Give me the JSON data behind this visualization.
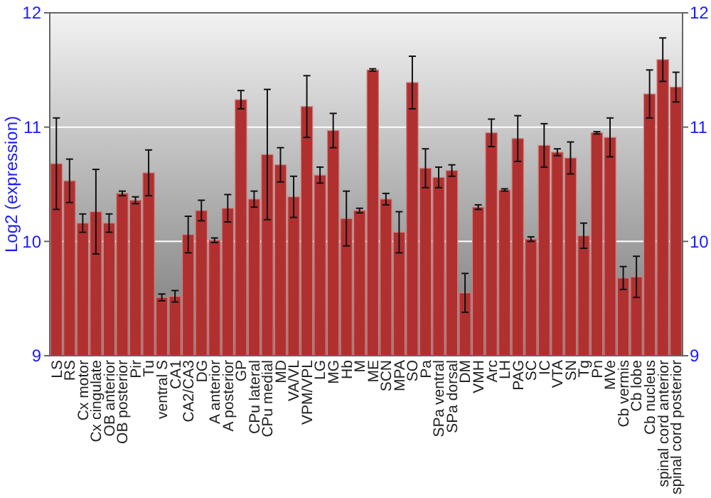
{
  "chart_data": {
    "type": "bar",
    "ylabel": "Log2 (expression)",
    "categories": [
      "LS",
      "RS",
      "Cx motor",
      "Cx cingulate",
      "OB anterior",
      "OB posterior",
      "Pir",
      "Tu",
      "ventral S",
      "CA1",
      "CA2/CA3",
      "DG",
      "A anterior",
      "A posterior",
      "GP",
      "CPu lateral",
      "CPu medial",
      "MD",
      "VA/VL",
      "VPM/VPL",
      "LG",
      "MG",
      "Hb",
      "M",
      "ME",
      "SCN",
      "MPA",
      "SO",
      "Pa",
      "SPa ventral",
      "SPa dorsal",
      "DM",
      "VMH",
      "Arc",
      "LH",
      "PAG",
      "SC",
      "IC",
      "VTA",
      "SN",
      "Tg",
      "Pn",
      "MVe",
      "Cb vermis",
      "Cb lobe",
      "Cb nucleus",
      "spinal cord anterior",
      "spinal cord posterior"
    ],
    "values": [
      10.68,
      10.53,
      10.16,
      10.26,
      10.16,
      10.42,
      10.36,
      10.6,
      9.51,
      9.52,
      10.06,
      10.27,
      10.01,
      10.29,
      11.24,
      10.37,
      10.76,
      10.67,
      10.39,
      11.18,
      10.58,
      10.97,
      10.2,
      10.27,
      11.5,
      10.37,
      10.08,
      11.39,
      10.64,
      10.56,
      10.62,
      9.55,
      10.3,
      10.95,
      10.45,
      10.9,
      10.02,
      10.84,
      10.78,
      10.73,
      10.05,
      10.95,
      10.91,
      9.68,
      9.69,
      11.29,
      11.59,
      11.35
    ],
    "errors": [
      0.4,
      0.19,
      0.08,
      0.37,
      0.08,
      0.02,
      0.03,
      0.2,
      0.03,
      0.05,
      0.16,
      0.09,
      0.02,
      0.12,
      0.08,
      0.07,
      0.57,
      0.15,
      0.18,
      0.27,
      0.07,
      0.15,
      0.24,
      0.02,
      0.01,
      0.05,
      0.18,
      0.23,
      0.17,
      0.09,
      0.05,
      0.17,
      0.02,
      0.12,
      0.01,
      0.2,
      0.02,
      0.19,
      0.03,
      0.14,
      0.11,
      0.01,
      0.17,
      0.1,
      0.18,
      0.21,
      0.19,
      0.13
    ],
    "color": "#b03030",
    "ylim": [
      9,
      12
    ],
    "yticks": [
      9,
      10,
      11,
      12
    ],
    "y2lim": [
      9,
      12
    ],
    "y2ticks": [
      9,
      10,
      11,
      12
    ],
    "grid": "y"
  }
}
